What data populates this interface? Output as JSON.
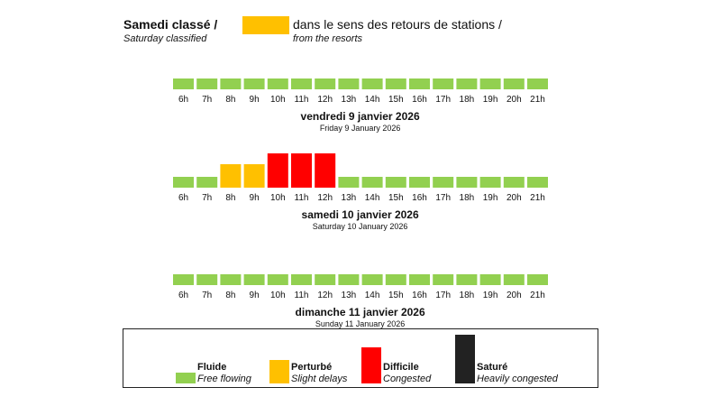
{
  "header": {
    "title_fr": "Samedi classé /",
    "title_en": "Saturday classified",
    "direction_fr": "dans le sens des retours de stations /",
    "direction_en": "from the resorts",
    "color": "#FFC000"
  },
  "colors": {
    "fluide": "#92D050",
    "perturbe": "#FFC000",
    "difficile": "#FF0000",
    "sature": "#222222"
  },
  "chart_data": [
    {
      "type": "bar",
      "title": "vendredi 9 janvier 2026",
      "subtitle": "Friday 9 January 2026",
      "categories": [
        "6h",
        "7h",
        "8h",
        "9h",
        "10h",
        "11h",
        "12h",
        "13h",
        "14h",
        "15h",
        "16h",
        "17h",
        "18h",
        "19h",
        "20h",
        "21h"
      ],
      "levels": [
        "fluide",
        "fluide",
        "fluide",
        "fluide",
        "fluide",
        "fluide",
        "fluide",
        "fluide",
        "fluide",
        "fluide",
        "fluide",
        "fluide",
        "fluide",
        "fluide",
        "fluide",
        "fluide"
      ]
    },
    {
      "type": "bar",
      "title": "samedi 10 janvier 2026",
      "subtitle": "Saturday 10 January 2026",
      "categories": [
        "6h",
        "7h",
        "8h",
        "9h",
        "10h",
        "11h",
        "12h",
        "13h",
        "14h",
        "15h",
        "16h",
        "17h",
        "18h",
        "19h",
        "20h",
        "21h"
      ],
      "levels": [
        "fluide",
        "fluide",
        "perturbe",
        "perturbe",
        "difficile",
        "difficile",
        "difficile",
        "fluide",
        "fluide",
        "fluide",
        "fluide",
        "fluide",
        "fluide",
        "fluide",
        "fluide",
        "fluide"
      ]
    },
    {
      "type": "bar",
      "title": "dimanche 11 janvier 2026",
      "subtitle": "Sunday 11 January 2026",
      "categories": [
        "6h",
        "7h",
        "8h",
        "9h",
        "10h",
        "11h",
        "12h",
        "13h",
        "14h",
        "15h",
        "16h",
        "17h",
        "18h",
        "19h",
        "20h",
        "21h"
      ],
      "levels": [
        "fluide",
        "fluide",
        "fluide",
        "fluide",
        "fluide",
        "fluide",
        "fluide",
        "fluide",
        "fluide",
        "fluide",
        "fluide",
        "fluide",
        "fluide",
        "fluide",
        "fluide",
        "fluide"
      ]
    }
  ],
  "legend": [
    {
      "key": "fluide",
      "label_fr": "Fluide",
      "label_en": "Free flowing",
      "color": "#92D050"
    },
    {
      "key": "perturbe",
      "label_fr": "Perturbé",
      "label_en": "Slight delays",
      "color": "#FFC000"
    },
    {
      "key": "difficile",
      "label_fr": "Difficile",
      "label_en": "Congested",
      "color": "#FF0000"
    },
    {
      "key": "sature",
      "label_fr": "Saturé",
      "label_en": "Heavily congested",
      "color": "#222222"
    }
  ]
}
